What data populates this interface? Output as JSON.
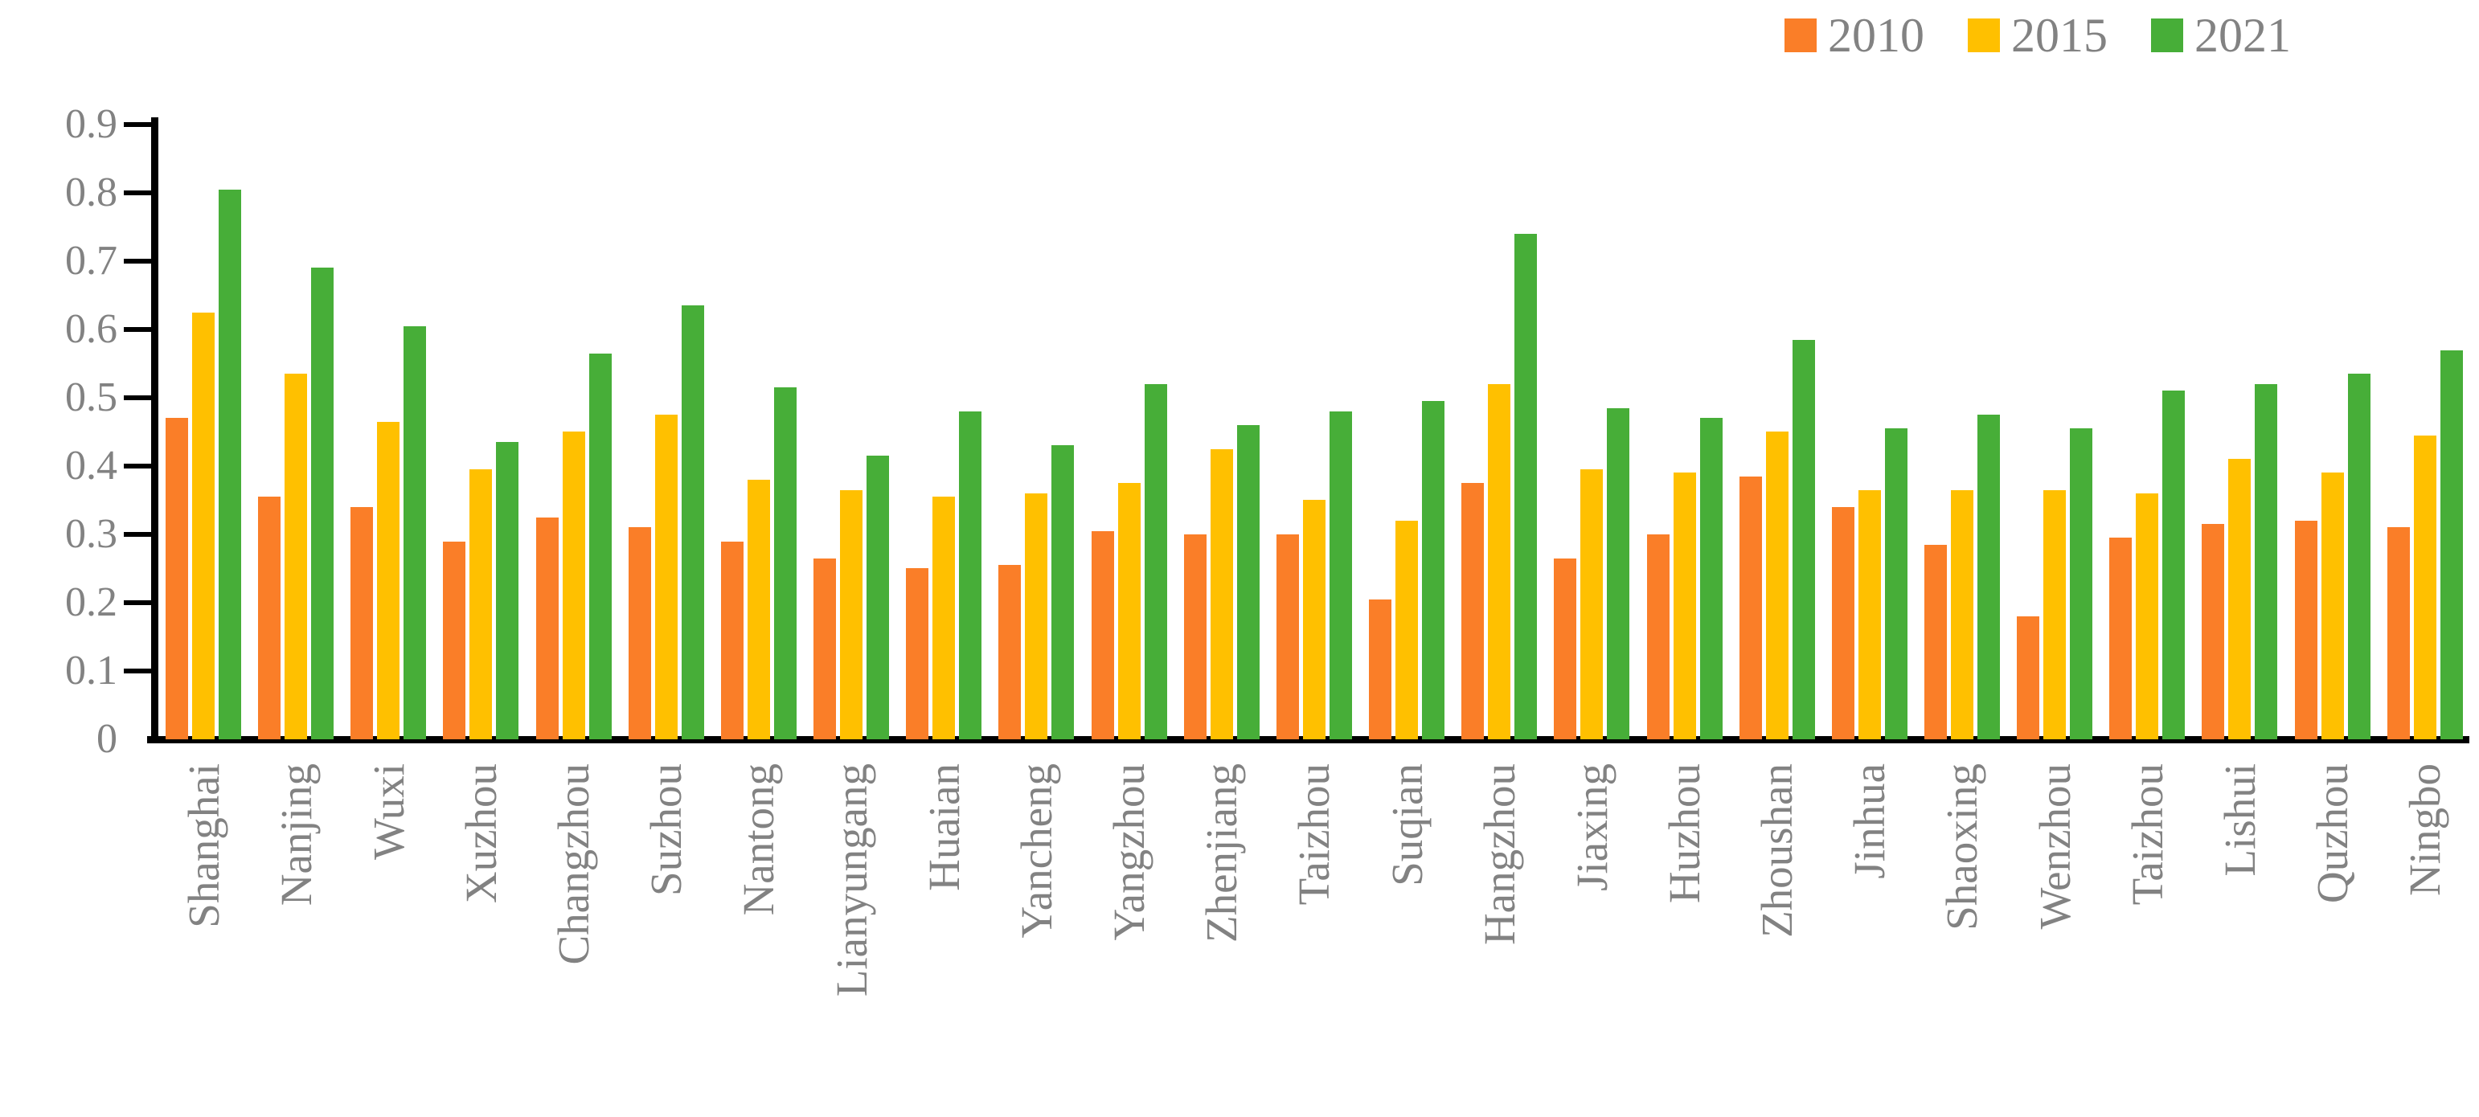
{
  "legend": {
    "items": [
      {
        "label": "2010",
        "color": "#FA7E28"
      },
      {
        "label": "2015",
        "color": "#FFC000"
      },
      {
        "label": "2021",
        "color": "#47AE38"
      }
    ]
  },
  "chart_data": {
    "type": "bar",
    "title": "",
    "xlabel": "",
    "ylabel": "",
    "categories": [
      "Shanghai",
      "Nanjing",
      "Wuxi",
      "Xuzhou",
      "Changzhou",
      "Suzhou",
      "Nantong",
      "Lianyungang",
      "Huaian",
      "Yancheng",
      "Yangzhou",
      "Zhenjiang",
      "Taizhou",
      "Suqian",
      "Hangzhou",
      "Jiaxing",
      "Huzhou",
      "Zhoushan",
      "Jinhua",
      "Shaoxing",
      "Wenzhou",
      "Taizhou",
      "Lishui",
      "Quzhou",
      "Ningbo"
    ],
    "series": [
      {
        "name": "2010",
        "color": "#FA7E28",
        "values": [
          0.47,
          0.355,
          0.34,
          0.29,
          0.325,
          0.31,
          0.29,
          0.265,
          0.25,
          0.255,
          0.305,
          0.3,
          0.3,
          0.205,
          0.375,
          0.265,
          0.3,
          0.385,
          0.34,
          0.285,
          0.18,
          0.295,
          0.315,
          0.32,
          0.31
        ]
      },
      {
        "name": "2015",
        "color": "#FFC000",
        "values": [
          0.625,
          0.535,
          0.465,
          0.395,
          0.45,
          0.475,
          0.38,
          0.365,
          0.355,
          0.36,
          0.375,
          0.425,
          0.35,
          0.32,
          0.52,
          0.395,
          0.39,
          0.45,
          0.365,
          0.365,
          0.365,
          0.36,
          0.41,
          0.39,
          0.445
        ]
      },
      {
        "name": "2021",
        "color": "#47AE38",
        "values": [
          0.805,
          0.69,
          0.605,
          0.435,
          0.565,
          0.635,
          0.515,
          0.415,
          0.48,
          0.43,
          0.52,
          0.46,
          0.48,
          0.495,
          0.74,
          0.485,
          0.47,
          0.585,
          0.455,
          0.475,
          0.455,
          0.51,
          0.52,
          0.535,
          0.57
        ]
      }
    ],
    "ylim": [
      0,
      0.9
    ],
    "yticks": [
      0,
      0.1,
      0.2,
      0.3,
      0.4,
      0.5,
      0.6,
      0.7,
      0.8,
      0.9
    ],
    "ytick_labels": [
      "0",
      "0.1",
      "0.2",
      "0.3",
      "0.4",
      "0.5",
      "0.6",
      "0.7",
      "0.8",
      "0.9"
    ],
    "grid": false,
    "legend_position": "top-right",
    "axis_color": "#000000",
    "label_color": "#828282"
  }
}
